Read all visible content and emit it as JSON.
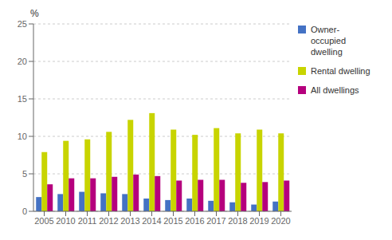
{
  "chart_data": {
    "type": "bar",
    "categories": [
      "2005",
      "2010",
      "2011",
      "2012",
      "2013",
      "2014",
      "2015",
      "2016",
      "2017",
      "2018",
      "2019",
      "2020"
    ],
    "series": [
      {
        "name": "Owner-\noccupied\ndwelling",
        "color": "#4472c4",
        "values": [
          1.9,
          2.3,
          2.6,
          2.4,
          2.3,
          1.7,
          1.5,
          1.7,
          1.4,
          1.2,
          0.9,
          1.3
        ]
      },
      {
        "name": "Rental dwelling",
        "color": "#c8d400",
        "values": [
          7.9,
          9.4,
          9.6,
          10.6,
          12.2,
          13.1,
          10.9,
          10.2,
          11.1,
          10.4,
          10.9,
          10.4
        ]
      },
      {
        "name": "All dwellings",
        "color": "#b5007d",
        "values": [
          3.6,
          4.4,
          4.4,
          4.6,
          4.9,
          4.7,
          4.1,
          4.2,
          4.2,
          3.8,
          3.9,
          4.1
        ]
      }
    ],
    "ylim": [
      0,
      25
    ],
    "yticks": [
      0,
      5,
      10,
      15,
      20,
      25
    ],
    "grid": true,
    "legend": "right",
    "annotations": [
      "%"
    ]
  }
}
